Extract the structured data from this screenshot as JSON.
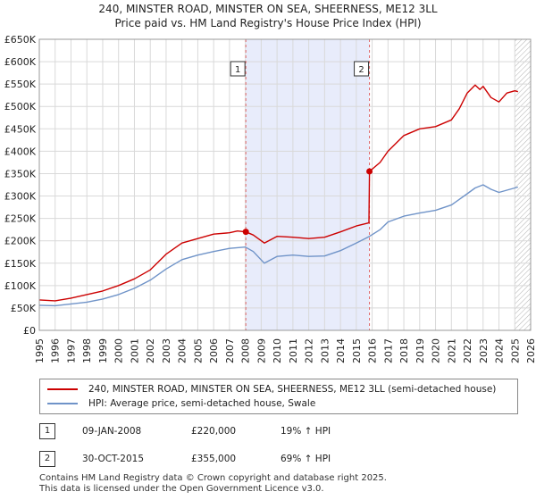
{
  "title_line1": "240, MINSTER ROAD, MINSTER ON SEA, SHEERNESS, ME12 3LL",
  "title_line2": "Price paid vs. HM Land Registry's House Price Index (HPI)",
  "colors": {
    "price_line": "#cc0000",
    "hpi_line": "#6f93c8",
    "shade": "#e8ecfb",
    "grid": "#d9d9d9",
    "vline": "#e06666"
  },
  "chart_data": {
    "type": "line",
    "xlim": [
      1995,
      2026
    ],
    "ylim": [
      0,
      650000
    ],
    "x_ticks": [
      1995,
      1996,
      1997,
      1998,
      1999,
      2000,
      2001,
      2002,
      2003,
      2004,
      2005,
      2006,
      2007,
      2008,
      2009,
      2010,
      2011,
      2012,
      2013,
      2014,
      2015,
      2016,
      2017,
      2018,
      2019,
      2020,
      2021,
      2022,
      2023,
      2024,
      2025,
      2026
    ],
    "y_ticks": [
      0,
      50000,
      100000,
      150000,
      200000,
      250000,
      300000,
      350000,
      400000,
      450000,
      500000,
      550000,
      600000,
      650000
    ],
    "y_tick_labels": [
      "£0",
      "£50K",
      "£100K",
      "£150K",
      "£200K",
      "£250K",
      "£300K",
      "£350K",
      "£400K",
      "£450K",
      "£500K",
      "£550K",
      "£600K",
      "£650K"
    ],
    "shaded_region": [
      2008.03,
      2015.83
    ],
    "future_hatch_start": 2025.0,
    "series": [
      {
        "name": "240, MINSTER ROAD, MINSTER ON SEA, SHEERNESS, ME12 3LL (semi-detached house)",
        "x": [
          1995.0,
          1996.0,
          1997.0,
          1998.0,
          1999.0,
          2000.0,
          2001.0,
          2002.0,
          2003.0,
          2004.0,
          2005.0,
          2006.0,
          2007.0,
          2007.5,
          2008.03,
          2008.5,
          2009.2,
          2010.0,
          2011.0,
          2012.0,
          2013.0,
          2014.0,
          2015.0,
          2015.8,
          2015.83,
          2016.5,
          2017.0,
          2018.0,
          2019.0,
          2020.0,
          2021.0,
          2021.5,
          2022.0,
          2022.5,
          2022.8,
          2023.0,
          2023.5,
          2024.0,
          2024.5,
          2025.0,
          2025.2
        ],
        "values": [
          68000,
          66000,
          72000,
          80000,
          88000,
          100000,
          115000,
          135000,
          170000,
          195000,
          205000,
          215000,
          218000,
          222000,
          220000,
          213000,
          195000,
          210000,
          208000,
          205000,
          208000,
          220000,
          233000,
          240000,
          355000,
          375000,
          400000,
          435000,
          450000,
          455000,
          470000,
          495000,
          530000,
          548000,
          538000,
          545000,
          520000,
          510000,
          530000,
          535000,
          533000
        ]
      },
      {
        "name": "HPI: Average price, semi-detached house, Swale",
        "x": [
          1995.0,
          1996.0,
          1997.0,
          1998.0,
          1999.0,
          2000.0,
          2001.0,
          2002.0,
          2003.0,
          2004.0,
          2005.0,
          2006.0,
          2007.0,
          2008.0,
          2008.5,
          2009.2,
          2010.0,
          2011.0,
          2012.0,
          2013.0,
          2014.0,
          2015.0,
          2015.83,
          2016.5,
          2017.0,
          2018.0,
          2019.0,
          2020.0,
          2021.0,
          2022.0,
          2022.5,
          2023.0,
          2023.5,
          2024.0,
          2024.5,
          2025.0,
          2025.2
        ],
        "values": [
          56000,
          55000,
          59000,
          63000,
          70000,
          80000,
          94000,
          112000,
          137000,
          158000,
          168000,
          176000,
          183000,
          186000,
          176000,
          150000,
          165000,
          168000,
          165000,
          166000,
          178000,
          195000,
          210000,
          225000,
          242000,
          255000,
          262000,
          268000,
          280000,
          305000,
          318000,
          325000,
          315000,
          308000,
          313000,
          318000,
          320000
        ]
      }
    ],
    "annotations": [
      {
        "label": "1",
        "x": 2008.03,
        "y": 220000
      },
      {
        "label": "2",
        "x": 2015.83,
        "y": 355000
      }
    ]
  },
  "legend": {
    "price_label": "240, MINSTER ROAD, MINSTER ON SEA, SHEERNESS, ME12 3LL (semi-detached house)",
    "hpi_label": "HPI: Average price, semi-detached house, Swale"
  },
  "sales": [
    {
      "num": "1",
      "date": "09-JAN-2008",
      "price": "£220,000",
      "hpi": "19% ↑ HPI"
    },
    {
      "num": "2",
      "date": "30-OCT-2015",
      "price": "£355,000",
      "hpi": "69% ↑ HPI"
    }
  ],
  "footer": {
    "line1": "Contains HM Land Registry data © Crown copyright and database right 2025.",
    "line2": "This data is licensed under the Open Government Licence v3.0."
  }
}
